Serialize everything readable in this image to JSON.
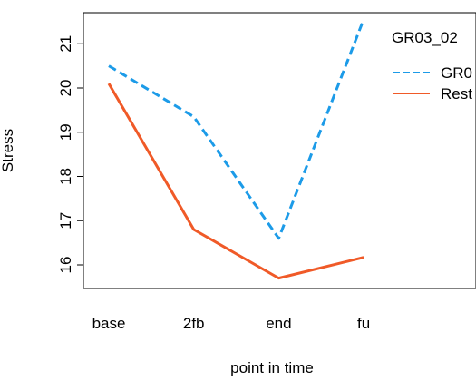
{
  "chart_data": {
    "type": "line",
    "categories": [
      "base",
      "2fb",
      "end",
      "fu"
    ],
    "xlabel": "point in time",
    "ylabel": "Stress",
    "ylim": [
      15.5,
      21.7
    ],
    "yticks": [
      16,
      17,
      18,
      19,
      20,
      21
    ],
    "grid": false,
    "legend": {
      "title": "GR03_02",
      "position": "top-right",
      "entries": [
        "GR0",
        "Rest"
      ]
    },
    "series": [
      {
        "name": "GR0",
        "values": [
          20.5,
          19.35,
          16.6,
          21.55
        ],
        "color": "#1c9be8",
        "dash": "dashed"
      },
      {
        "name": "Rest",
        "values": [
          20.1,
          16.8,
          15.7,
          16.17
        ],
        "color": "#f05a28",
        "dash": "solid"
      }
    ]
  }
}
